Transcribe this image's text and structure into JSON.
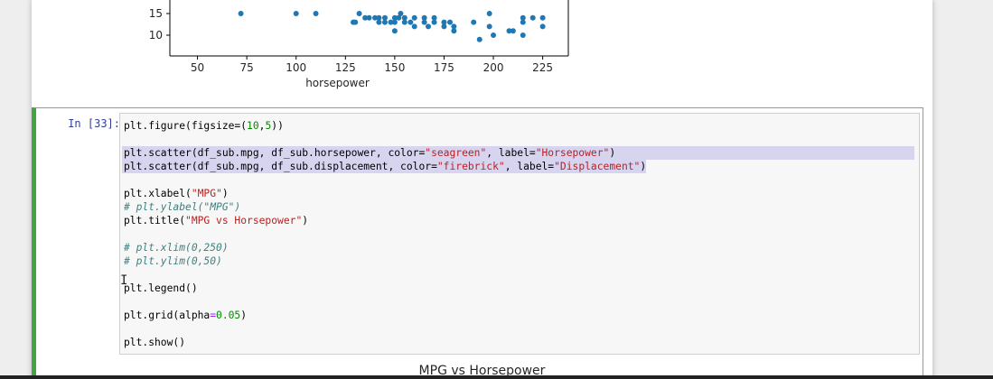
{
  "plot": {
    "x_label": "horsepower",
    "x_ticks": [
      "50",
      "75",
      "100",
      "125",
      "150",
      "175",
      "200",
      "225"
    ],
    "y_ticks_visible": [
      "15",
      "10"
    ],
    "marker_color": "#1f77b4",
    "points": [
      [
        72,
        15
      ],
      [
        100,
        15
      ],
      [
        110,
        15
      ],
      [
        129,
        13
      ],
      [
        130,
        13
      ],
      [
        132,
        15
      ],
      [
        135,
        14
      ],
      [
        137,
        14
      ],
      [
        140,
        14
      ],
      [
        142,
        14
      ],
      [
        142,
        13
      ],
      [
        145,
        13
      ],
      [
        145,
        14
      ],
      [
        148,
        13
      ],
      [
        150,
        14
      ],
      [
        150,
        13
      ],
      [
        152,
        14
      ],
      [
        153,
        15
      ],
      [
        155,
        14
      ],
      [
        155,
        13
      ],
      [
        150,
        11
      ],
      [
        158,
        13
      ],
      [
        160,
        14
      ],
      [
        160,
        12
      ],
      [
        165,
        13
      ],
      [
        165,
        14
      ],
      [
        167,
        12
      ],
      [
        170,
        13
      ],
      [
        170,
        14
      ],
      [
        175,
        12
      ],
      [
        175,
        13
      ],
      [
        178,
        13
      ],
      [
        180,
        11
      ],
      [
        180,
        12
      ],
      [
        190,
        13
      ],
      [
        193,
        9
      ],
      [
        198,
        12
      ],
      [
        198,
        15
      ],
      [
        200,
        10
      ],
      [
        208,
        11
      ],
      [
        210,
        11
      ],
      [
        215,
        13
      ],
      [
        215,
        10
      ],
      [
        215,
        14
      ],
      [
        220,
        14
      ],
      [
        225,
        12
      ],
      [
        225,
        14
      ]
    ]
  },
  "cell": {
    "prompt": "In [33]:",
    "lines": [
      [
        [
          "plt.figure(figsize=",
          ""
        ],
        [
          "(",
          ""
        ],
        [
          "10",
          "num"
        ],
        [
          ",",
          ""
        ],
        [
          "5",
          "num"
        ],
        [
          "))",
          ""
        ]
      ],
      [],
      [
        [
          "plt.scatter(df_sub.mpg, df_sub.horsepower, color=",
          ""
        ],
        [
          "\"seagreen\"",
          "str"
        ],
        [
          ", label=",
          ""
        ],
        [
          "\"Horsepower\"",
          "str"
        ],
        [
          ")",
          ""
        ]
      ],
      [
        [
          "plt.scatter(df_sub.mpg, df_sub.displacement, color=",
          ""
        ],
        [
          "\"firebrick\"",
          "str"
        ],
        [
          ", label=",
          ""
        ],
        [
          "\"Displacement\"",
          "str"
        ],
        [
          ")",
          ""
        ]
      ],
      [],
      [
        [
          "plt.xlabel(",
          ""
        ],
        [
          "\"MPG\"",
          "str"
        ],
        [
          ")",
          ""
        ]
      ],
      [
        [
          "# plt.ylabel(\"MPG\")",
          "com"
        ]
      ],
      [
        [
          "plt.title(",
          ""
        ],
        [
          "\"MPG vs Horsepower\"",
          "str"
        ],
        [
          ")",
          ""
        ]
      ],
      [],
      [
        [
          "# plt.xlim(0,250)",
          "com"
        ]
      ],
      [
        [
          "# plt.ylim(0,50)",
          "com"
        ]
      ],
      [],
      [
        [
          "plt.legend()",
          ""
        ]
      ],
      [],
      [
        [
          "plt.grid(alpha",
          ""
        ],
        [
          "=",
          "op"
        ],
        [
          "0.05",
          "num"
        ],
        [
          ")",
          ""
        ]
      ],
      [],
      [
        [
          "plt.show()",
          ""
        ]
      ]
    ]
  },
  "next_output": {
    "title": "MPG vs Horsepower"
  }
}
